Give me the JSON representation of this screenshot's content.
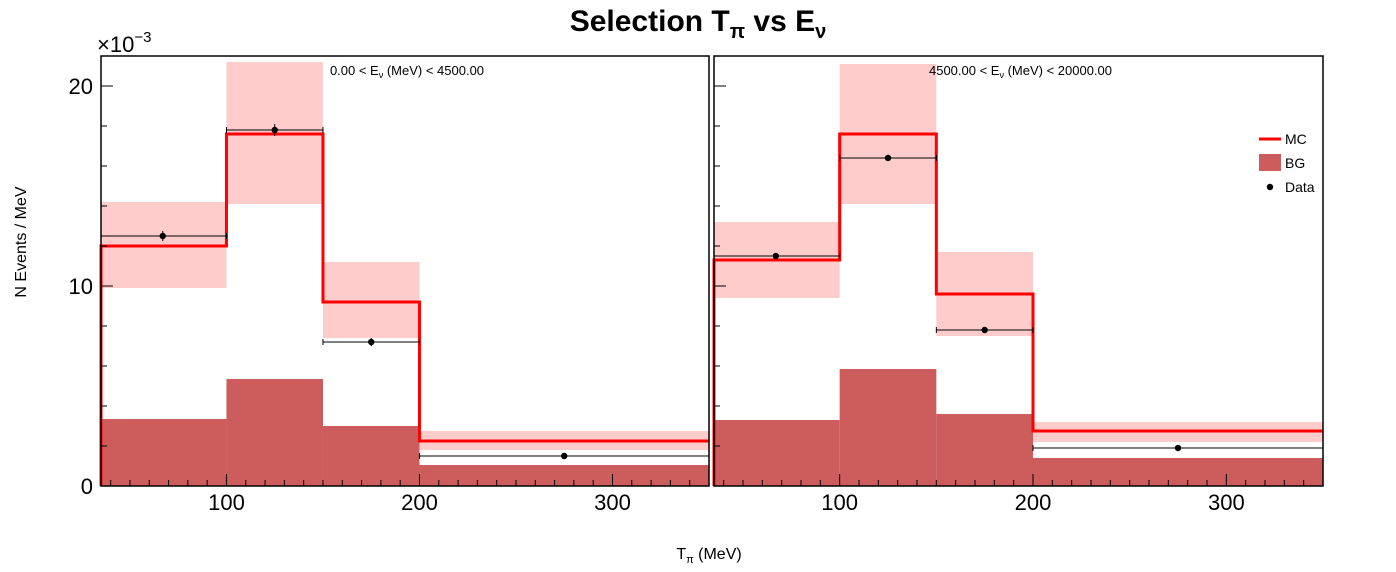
{
  "figure": {
    "title_main": "Selection T",
    "title_sub1": "π",
    "title_mid": " vs E",
    "title_sub2": "ν",
    "ylabel": "N Events / MeV",
    "xlabel_main": "T",
    "xlabel_sub": "π",
    "xlabel_unit": " (MeV)",
    "exponent_prefix": "×10",
    "exponent_power": "−3"
  },
  "legend": {
    "position": "right, inside second panel",
    "entries": [
      {
        "label": "MC",
        "kind": "line",
        "color": "#ff0000"
      },
      {
        "label": "BG",
        "kind": "fill",
        "color": "#cd5c5c"
      },
      {
        "label": "Data",
        "kind": "marker",
        "color": "#000000"
      }
    ]
  },
  "colors": {
    "mc": "#ff0000",
    "mc_band": "#ffcccc",
    "bg": "#cd5c5c",
    "data": "#000000"
  },
  "chart_data": [
    {
      "type": "bar",
      "panel_label_pre": "0.00 < E",
      "panel_label_sub": "ν",
      "panel_label_post": " (MeV) < 4500.00",
      "x_ticks": [
        "100",
        "200",
        "300"
      ],
      "y_ticks": [
        "0",
        "10",
        "20"
      ],
      "xlim": [
        35,
        350
      ],
      "ylim": [
        0,
        21.5
      ],
      "y_scale_note": "values in units of 1e-3",
      "bins": [
        [
          35,
          100
        ],
        [
          100,
          150
        ],
        [
          150,
          200
        ],
        [
          200,
          350
        ]
      ],
      "mc": [
        12.0,
        17.6,
        9.2,
        2.25
      ],
      "mc_band_low": [
        9.9,
        14.1,
        7.4,
        1.8
      ],
      "mc_band_high": [
        14.2,
        21.2,
        11.2,
        2.75
      ],
      "bg": [
        3.35,
        5.35,
        3.0,
        1.05
      ],
      "data_x": [
        67,
        125,
        175,
        275
      ],
      "data_y": [
        12.5,
        17.8,
        7.2,
        1.5
      ],
      "data_err": [
        0.25,
        0.3,
        0.2,
        0.08
      ]
    },
    {
      "type": "bar",
      "panel_label_pre": "4500.00 < E",
      "panel_label_sub": "ν",
      "panel_label_post": " (MeV) < 20000.00",
      "x_ticks": [
        "100",
        "200",
        "300"
      ],
      "y_ticks": [],
      "xlim": [
        35,
        350
      ],
      "ylim": [
        0,
        21.5
      ],
      "y_scale_note": "values in units of 1e-3",
      "bins": [
        [
          35,
          100
        ],
        [
          100,
          150
        ],
        [
          150,
          200
        ],
        [
          200,
          350
        ]
      ],
      "mc": [
        11.3,
        17.6,
        9.6,
        2.75
      ],
      "mc_band_low": [
        9.4,
        14.1,
        7.5,
        2.2
      ],
      "mc_band_high": [
        13.2,
        21.1,
        11.7,
        3.2
      ],
      "bg": [
        3.3,
        5.85,
        3.6,
        1.4
      ],
      "data_x": [
        67,
        125,
        175,
        275
      ],
      "data_y": [
        11.5,
        16.4,
        7.8,
        1.9
      ],
      "data_err": [
        0.15,
        0.15,
        0.12,
        0.06
      ]
    }
  ]
}
